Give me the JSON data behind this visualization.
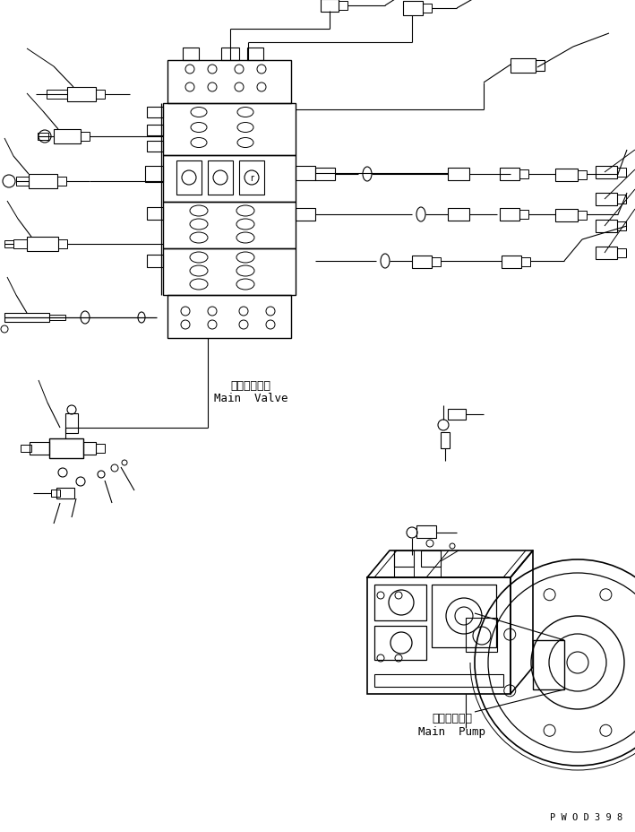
{
  "bg_color": "#ffffff",
  "line_color": "#000000",
  "label_main_valve_jp": "メインバルブ",
  "label_main_valve_en": "Main  Valve",
  "label_main_pump_jp": "メインポンプ",
  "label_main_pump_en": "Main  Pump",
  "watermark": "P W O D 3 9 8",
  "fig_width": 7.09,
  "fig_height": 9.29,
  "dpi": 100
}
